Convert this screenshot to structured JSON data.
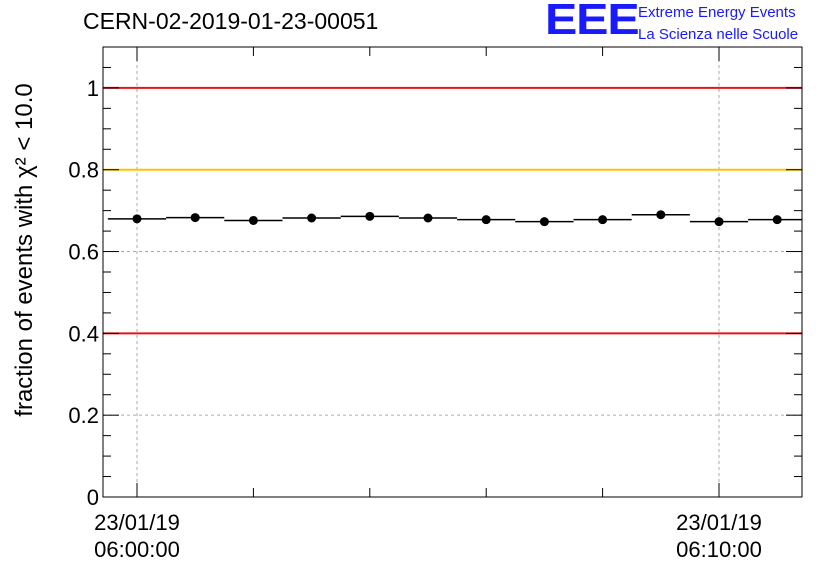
{
  "header": {
    "title": "CERN-02-2019-01-23-00051",
    "logo_text": "EEE",
    "logo_line1": "Extreme Energy Events",
    "logo_line2": "La Scienza nelle Scuole"
  },
  "chart_data": {
    "type": "scatter",
    "title": "CERN-02-2019-01-23-00051",
    "ylabel": "fraction of events with χ² < 10.0",
    "xlabel": "",
    "ylim": [
      0,
      1.1
    ],
    "xlim_minutes": [
      -0.2,
      11.3
    ],
    "x_ticks": [
      {
        "min": 0,
        "label_date": "23/01/19",
        "label_time": "06:00:00"
      },
      {
        "min": 10,
        "label_date": "23/01/19",
        "label_time": "06:10:00"
      }
    ],
    "y_ticks": [
      {
        "value": 0,
        "label": "0"
      },
      {
        "value": 0.2,
        "label": "0.2"
      },
      {
        "value": 0.4,
        "label": "0.4"
      },
      {
        "value": 0.6,
        "label": "0.6"
      },
      {
        "value": 0.8,
        "label": "0.8"
      },
      {
        "value": 1.0,
        "label": "1"
      }
    ],
    "reference_lines": [
      {
        "value": 1.0,
        "color": "#e8141a"
      },
      {
        "value": 0.8,
        "color": "#ffc400"
      },
      {
        "value": 0.4,
        "color": "#e8141a"
      }
    ],
    "grid": true,
    "bin_width_min": 1,
    "series": [
      {
        "x_min": [
          0,
          1,
          2,
          3,
          4,
          5,
          6,
          7,
          8,
          9,
          10,
          11
        ],
        "y": [
          0.68,
          0.683,
          0.676,
          0.682,
          0.686,
          0.682,
          0.678,
          0.673,
          0.678,
          0.69,
          0.673,
          0.678
        ]
      }
    ]
  }
}
